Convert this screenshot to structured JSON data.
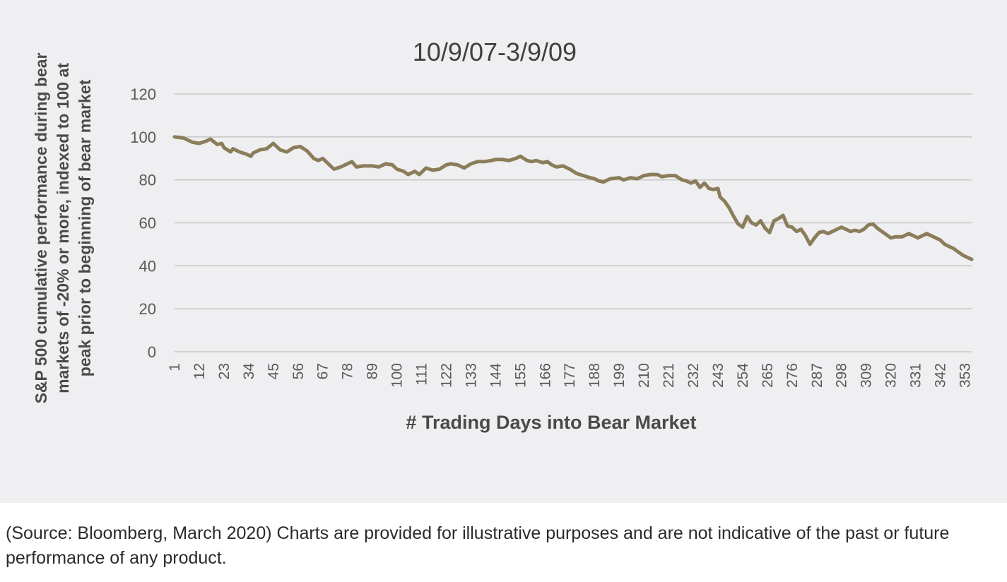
{
  "chart_data": {
    "type": "line",
    "title": "10/9/07-3/9/09",
    "xlabel": "# Trading Days into Bear Market",
    "ylabel_lines": [
      "S&P 500 cumulative performance during bear",
      "markets of -20% or more, indexed to 100 at",
      "peak prior to beginning of bear market"
    ],
    "ylim": [
      0,
      120
    ],
    "yticks": [
      "0",
      "20",
      "40",
      "60",
      "80",
      "100",
      "120"
    ],
    "xlim": [
      1,
      356
    ],
    "xticks": [
      "1",
      "12",
      "23",
      "34",
      "45",
      "56",
      "67",
      "78",
      "89",
      "100",
      "111",
      "122",
      "133",
      "144",
      "155",
      "166",
      "177",
      "188",
      "199",
      "210",
      "221",
      "232",
      "243",
      "254",
      "265",
      "276",
      "287",
      "298",
      "309",
      "320",
      "331",
      "342",
      "353"
    ],
    "grid": true,
    "legend": "none",
    "series": [
      {
        "color": "#8b7d5a",
        "points": [
          [
            1,
            100
          ],
          [
            5,
            99.5
          ],
          [
            9,
            97.5
          ],
          [
            12,
            97
          ],
          [
            15,
            98
          ],
          [
            17,
            99
          ],
          [
            20,
            96.5
          ],
          [
            22,
            97
          ],
          [
            23,
            95
          ],
          [
            26,
            93
          ],
          [
            27,
            94.5
          ],
          [
            30,
            93
          ],
          [
            33,
            92
          ],
          [
            35,
            91
          ],
          [
            36,
            92.5
          ],
          [
            39,
            94
          ],
          [
            42,
            94.5
          ],
          [
            45,
            97
          ],
          [
            48,
            94
          ],
          [
            51,
            93
          ],
          [
            54,
            95
          ],
          [
            57,
            95.5
          ],
          [
            60,
            93.5
          ],
          [
            63,
            90
          ],
          [
            65,
            89
          ],
          [
            67,
            90
          ],
          [
            70,
            87
          ],
          [
            72,
            85
          ],
          [
            75,
            86
          ],
          [
            78,
            87.5
          ],
          [
            80,
            88.5
          ],
          [
            82,
            86
          ],
          [
            85,
            86.5
          ],
          [
            89,
            86.5
          ],
          [
            92,
            86
          ],
          [
            95,
            87.5
          ],
          [
            98,
            87
          ],
          [
            100,
            85
          ],
          [
            103,
            84
          ],
          [
            105,
            82.5
          ],
          [
            108,
            84
          ],
          [
            110,
            82.5
          ],
          [
            113,
            85.5
          ],
          [
            116,
            84.5
          ],
          [
            119,
            85
          ],
          [
            122,
            87
          ],
          [
            124,
            87.5
          ],
          [
            127,
            87
          ],
          [
            130,
            85.5
          ],
          [
            133,
            87.5
          ],
          [
            136,
            88.5
          ],
          [
            139,
            88.5
          ],
          [
            142,
            89
          ],
          [
            144,
            89.5
          ],
          [
            147,
            89.5
          ],
          [
            150,
            89
          ],
          [
            153,
            90
          ],
          [
            155,
            91
          ],
          [
            158,
            89
          ],
          [
            160,
            88.5
          ],
          [
            162,
            89
          ],
          [
            165,
            88
          ],
          [
            167,
            88.5
          ],
          [
            169,
            87
          ],
          [
            171,
            86
          ],
          [
            174,
            86.5
          ],
          [
            177,
            85
          ],
          [
            180,
            83
          ],
          [
            183,
            82
          ],
          [
            186,
            81
          ],
          [
            188,
            80.5
          ],
          [
            190,
            79.5
          ],
          [
            192,
            79
          ],
          [
            195,
            80.5
          ],
          [
            199,
            81
          ],
          [
            201,
            80
          ],
          [
            204,
            81
          ],
          [
            207,
            80.5
          ],
          [
            210,
            82
          ],
          [
            213,
            82.5
          ],
          [
            216,
            82.5
          ],
          [
            218,
            81.5
          ],
          [
            221,
            82
          ],
          [
            224,
            82
          ],
          [
            227,
            80
          ],
          [
            229,
            79.5
          ],
          [
            231,
            78.5
          ],
          [
            233,
            79.5
          ],
          [
            235,
            76.5
          ],
          [
            237,
            78.5
          ],
          [
            239,
            76
          ],
          [
            241,
            75.5
          ],
          [
            243,
            76
          ],
          [
            244,
            72
          ],
          [
            246,
            70
          ],
          [
            248,
            67
          ],
          [
            250,
            63
          ],
          [
            252,
            59.5
          ],
          [
            254,
            58
          ],
          [
            256,
            63
          ],
          [
            258,
            60
          ],
          [
            260,
            59
          ],
          [
            262,
            61
          ],
          [
            264,
            57.5
          ],
          [
            266,
            55.5
          ],
          [
            268,
            61
          ],
          [
            270,
            62
          ],
          [
            272,
            63.5
          ],
          [
            274,
            58.5
          ],
          [
            276,
            58
          ],
          [
            278,
            56
          ],
          [
            280,
            57
          ],
          [
            282,
            54
          ],
          [
            284,
            50
          ],
          [
            286,
            53
          ],
          [
            288,
            55.5
          ],
          [
            290,
            56
          ],
          [
            292,
            55
          ],
          [
            294,
            56
          ],
          [
            296,
            57
          ],
          [
            298,
            58
          ],
          [
            300,
            57
          ],
          [
            302,
            56
          ],
          [
            304,
            56.5
          ],
          [
            306,
            56
          ],
          [
            308,
            57
          ],
          [
            310,
            59
          ],
          [
            312,
            59.5
          ],
          [
            314,
            57.5
          ],
          [
            316,
            56
          ],
          [
            318,
            54.5
          ],
          [
            320,
            53
          ],
          [
            322,
            53.5
          ],
          [
            325,
            53.5
          ],
          [
            328,
            55
          ],
          [
            330,
            54
          ],
          [
            332,
            53
          ],
          [
            334,
            54
          ],
          [
            336,
            55
          ],
          [
            338,
            54
          ],
          [
            340,
            53
          ],
          [
            342,
            52
          ],
          [
            344,
            50
          ],
          [
            346,
            49
          ],
          [
            348,
            48
          ],
          [
            350,
            46.5
          ],
          [
            352,
            45
          ],
          [
            354,
            44
          ],
          [
            356,
            43
          ]
        ]
      }
    ]
  },
  "caption": "(Source: Bloomberg, March 2020) Charts are provided for illustrative purposes and are not indicative of the past or future performance of any product."
}
